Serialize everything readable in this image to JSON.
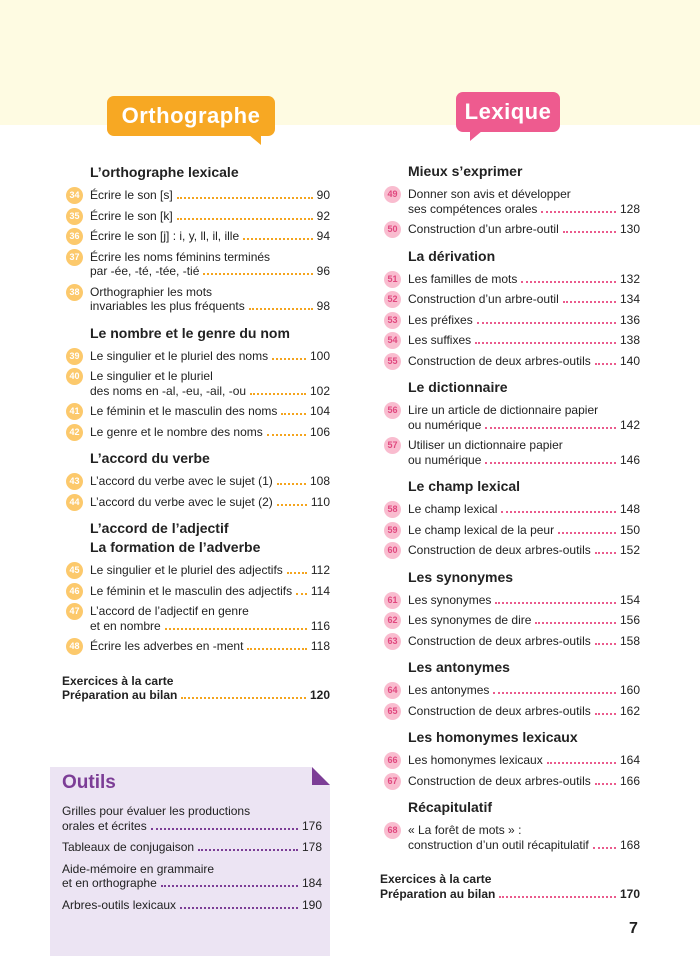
{
  "orthographe": {
    "title": "Orthographe",
    "groups": [
      {
        "title": [
          "L’orthographe lexicale"
        ],
        "items": [
          {
            "num": "34",
            "lines": [
              "Écrire le son [s]"
            ],
            "page": "90"
          },
          {
            "num": "35",
            "lines": [
              "Écrire le son [k]"
            ],
            "page": "92"
          },
          {
            "num": "36",
            "lines": [
              "Écrire le son [j] : i, y, ll, il, ille"
            ],
            "page": "94"
          },
          {
            "num": "37",
            "lines": [
              "Écrire les noms féminins terminés",
              "par -ée, -té, -tée, -tié"
            ],
            "page": "96"
          },
          {
            "num": "38",
            "lines": [
              "Orthographier les mots",
              "invariables les plus fréquents"
            ],
            "page": "98"
          }
        ]
      },
      {
        "title": [
          "Le nombre et le genre du nom"
        ],
        "items": [
          {
            "num": "39",
            "lines": [
              "Le singulier et le pluriel des noms"
            ],
            "page": "100"
          },
          {
            "num": "40",
            "lines": [
              "Le singulier et le pluriel",
              "des noms en -al, -eu, -ail, -ou"
            ],
            "page": "102"
          },
          {
            "num": "41",
            "lines": [
              "Le féminin et le masculin des noms"
            ],
            "page": "104"
          },
          {
            "num": "42",
            "lines": [
              "Le genre et le nombre des noms"
            ],
            "page": "106"
          }
        ]
      },
      {
        "title": [
          "L’accord du verbe"
        ],
        "items": [
          {
            "num": "43",
            "lines": [
              "L’accord du verbe avec le sujet (1)"
            ],
            "page": "108"
          },
          {
            "num": "44",
            "lines": [
              "L’accord du verbe avec le sujet (2)"
            ],
            "page": "110"
          }
        ]
      },
      {
        "title": [
          "L’accord de l’adjectif",
          "La formation de l’adverbe"
        ],
        "items": [
          {
            "num": "45",
            "lines": [
              "Le singulier et le pluriel des adjectifs"
            ],
            "page": "112"
          },
          {
            "num": "46",
            "lines": [
              "Le féminin et le masculin des adjectifs"
            ],
            "page": "114"
          },
          {
            "num": "47",
            "lines": [
              "L’accord de l’adjectif en genre",
              "et en nombre"
            ],
            "page": "116"
          },
          {
            "num": "48",
            "lines": [
              "Écrire les adverbes en -ment"
            ],
            "page": "118"
          }
        ]
      }
    ],
    "footer": {
      "lines": [
        "Exercices à la carte",
        "Préparation au bilan"
      ],
      "page": "120"
    }
  },
  "outils": {
    "title": "Outils",
    "items": [
      {
        "lines": [
          "Grilles pour évaluer les productions",
          "orales et écrites"
        ],
        "page": "176"
      },
      {
        "lines": [
          "Tableaux de conjugaison"
        ],
        "page": "178"
      },
      {
        "lines": [
          "Aide-mémoire en grammaire",
          "et en orthographe"
        ],
        "page": "184"
      },
      {
        "lines": [
          "Arbres-outils lexicaux"
        ],
        "page": "190"
      }
    ]
  },
  "lexique": {
    "title": "Lexique",
    "groups": [
      {
        "title": [
          "Mieux s’exprimer"
        ],
        "items": [
          {
            "num": "49",
            "lines": [
              "Donner son avis et développer",
              "ses compétences orales"
            ],
            "page": "128"
          },
          {
            "num": "50",
            "lines": [
              "Construction d’un arbre-outil"
            ],
            "page": "130"
          }
        ]
      },
      {
        "title": [
          "La dérivation"
        ],
        "items": [
          {
            "num": "51",
            "lines": [
              "Les familles de mots"
            ],
            "page": "132"
          },
          {
            "num": "52",
            "lines": [
              "Construction d’un arbre-outil"
            ],
            "page": "134"
          },
          {
            "num": "53",
            "lines": [
              "Les préfixes"
            ],
            "page": "136"
          },
          {
            "num": "54",
            "lines": [
              "Les suffixes"
            ],
            "page": "138"
          },
          {
            "num": "55",
            "lines": [
              "Construction de deux arbres-outils"
            ],
            "page": "140"
          }
        ]
      },
      {
        "title": [
          "Le dictionnaire"
        ],
        "items": [
          {
            "num": "56",
            "lines": [
              "Lire un article de dictionnaire papier",
              "ou numérique"
            ],
            "page": "142"
          },
          {
            "num": "57",
            "lines": [
              "Utiliser un dictionnaire papier",
              "ou numérique"
            ],
            "page": "146"
          }
        ]
      },
      {
        "title": [
          "Le champ lexical"
        ],
        "items": [
          {
            "num": "58",
            "lines": [
              "Le champ lexical"
            ],
            "page": "148"
          },
          {
            "num": "59",
            "lines": [
              "Le champ lexical de la peur"
            ],
            "page": "150"
          },
          {
            "num": "60",
            "lines": [
              "Construction de deux arbres-outils"
            ],
            "page": "152"
          }
        ]
      },
      {
        "title": [
          "Les synonymes"
        ],
        "items": [
          {
            "num": "61",
            "lines": [
              "Les synonymes"
            ],
            "page": "154"
          },
          {
            "num": "62",
            "lines": [
              "Les synonymes de dire"
            ],
            "page": "156"
          },
          {
            "num": "63",
            "lines": [
              "Construction de deux arbres-outils"
            ],
            "page": "158"
          }
        ]
      },
      {
        "title": [
          "Les antonymes"
        ],
        "items": [
          {
            "num": "64",
            "lines": [
              "Les antonymes"
            ],
            "page": "160"
          },
          {
            "num": "65",
            "lines": [
              "Construction de deux arbres-outils"
            ],
            "page": "162"
          }
        ]
      },
      {
        "title": [
          "Les homonymes lexicaux"
        ],
        "items": [
          {
            "num": "66",
            "lines": [
              "Les homonymes lexicaux"
            ],
            "page": "164"
          },
          {
            "num": "67",
            "lines": [
              "Construction de deux arbres-outils"
            ],
            "page": "166"
          }
        ]
      },
      {
        "title": [
          "Récapitulatif"
        ],
        "items": [
          {
            "num": "68",
            "lines": [
              "« La forêt de mots » :",
              "construction d’un outil récapitulatif"
            ],
            "page": "168"
          }
        ]
      }
    ],
    "footer": {
      "lines": [
        "Exercices à la carte",
        "Préparation au bilan"
      ],
      "page": "170"
    }
  },
  "page_number": "7"
}
